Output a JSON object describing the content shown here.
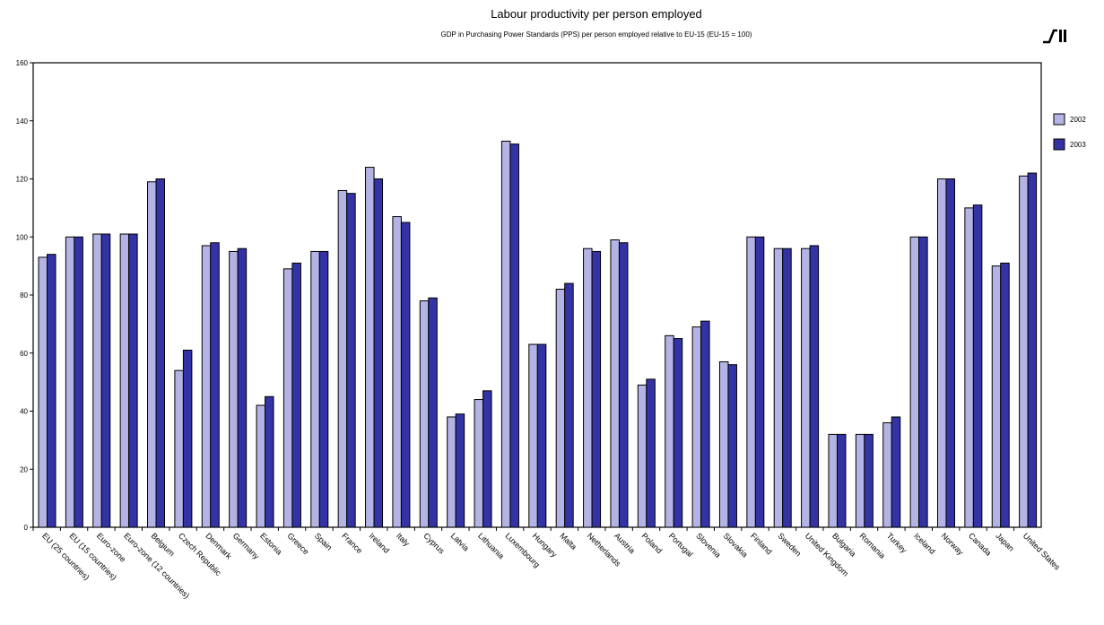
{
  "chart_data": {
    "type": "bar",
    "title": "Labour productivity per person employed",
    "subtitle": "GDP in Purchasing Power Standards (PPS) per person employed relative to EU-15 (EU-15 = 100)",
    "xlabel": "",
    "ylabel": "",
    "ylim": [
      0,
      160
    ],
    "yticks": [
      0,
      20,
      40,
      60,
      80,
      100,
      120,
      140,
      160
    ],
    "grid": false,
    "legend_position": "right",
    "categories": [
      "EU (25 countries)",
      "EU (15 countries)",
      "Euro-zone",
      "Euro-zone (12 countries)",
      "Belgium",
      "Czech Republic",
      "Denmark",
      "Germany",
      "Estonia",
      "Greece",
      "Spain",
      "France",
      "Ireland",
      "Italy",
      "Cyprus",
      "Latvia",
      "Lithuania",
      "Luxembourg",
      "Hungary",
      "Malta",
      "Netherlands",
      "Austria",
      "Poland",
      "Portugal",
      "Slovenia",
      "Slovakia",
      "Finland",
      "Sweden",
      "United Kingdom",
      "Bulgaria",
      "Romania",
      "Turkey",
      "Iceland",
      "Norway",
      "Canada",
      "Japan",
      "United States"
    ],
    "series": [
      {
        "name": "2002",
        "color": "#b3b3e6",
        "values": [
          93,
          100,
          101,
          101,
          119,
          54,
          97,
          95,
          42,
          89,
          95,
          116,
          124,
          107,
          78,
          38,
          44,
          133,
          63,
          82,
          96,
          99,
          49,
          66,
          69,
          57,
          100,
          96,
          96,
          32,
          32,
          36,
          100,
          120,
          110,
          90,
          121
        ]
      },
      {
        "name": "2003",
        "color": "#3333a6",
        "values": [
          94,
          100,
          101,
          101,
          120,
          61,
          98,
          96,
          45,
          91,
          95,
          115,
          120,
          105,
          79,
          39,
          47,
          132,
          63,
          84,
          95,
          98,
          51,
          65,
          71,
          56,
          100,
          96,
          97,
          32,
          32,
          38,
          100,
          120,
          111,
          91,
          122
        ]
      }
    ]
  }
}
